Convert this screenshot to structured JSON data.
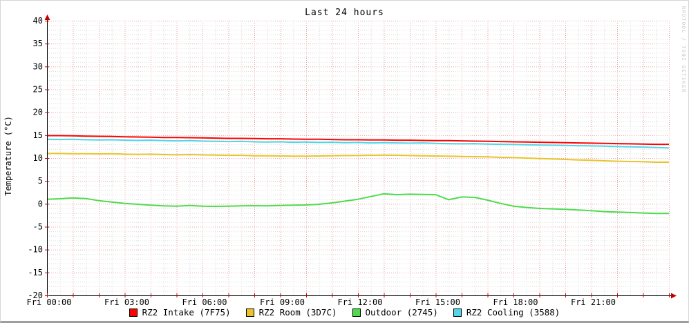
{
  "chart": {
    "title": "Last 24 hours",
    "watermark": "RRDTOOL / TOBI OETIKER"
  },
  "chart_data": {
    "type": "line",
    "title": "Last 24 hours",
    "xlabel": "",
    "ylabel": "Temperature (°C)",
    "x_axis_kind": "time, hours since Fri 00:00",
    "xlim": [
      0,
      24
    ],
    "ylim": [
      -20,
      40
    ],
    "y_major_step": 5,
    "y_minor_step": 1,
    "x_major_step_hours": 1,
    "x_minor_step_hours": 0.5,
    "x_ticks_hours": [
      0,
      3,
      6,
      9,
      12,
      15,
      18,
      21
    ],
    "x_tick_labels": [
      "Fri 00:00",
      "Fri 03:00",
      "Fri 06:00",
      "Fri 09:00",
      "Fri 12:00",
      "Fri 15:00",
      "Fri 18:00",
      "Fri 21:00"
    ],
    "y_tick_values": [
      -20,
      -15,
      -10,
      -5,
      0,
      5,
      10,
      15,
      20,
      25,
      30,
      35,
      40
    ],
    "grid_on": true,
    "legend_position": "bottom",
    "colors": {
      "major_grid": "#f2a0a0",
      "minor_grid": "#dcdcdc",
      "axis": "#000000",
      "arrow": "#c00000",
      "watermark": "#c6c6c6"
    },
    "sample_step_hours": 0.5,
    "series": [
      {
        "name": "RZ2 Intake (7F75)",
        "color": "#ff0000",
        "values": [
          14.9,
          14.9,
          14.85,
          14.8,
          14.75,
          14.7,
          14.65,
          14.6,
          14.55,
          14.5,
          14.5,
          14.45,
          14.4,
          14.35,
          14.3,
          14.3,
          14.25,
          14.2,
          14.2,
          14.15,
          14.1,
          14.1,
          14.05,
          14.0,
          14.0,
          13.95,
          13.95,
          13.9,
          13.9,
          13.85,
          13.8,
          13.8,
          13.75,
          13.7,
          13.65,
          13.6,
          13.55,
          13.5,
          13.45,
          13.4,
          13.35,
          13.3,
          13.25,
          13.2,
          13.15,
          13.1,
          13.05,
          13.0,
          13.0
        ]
      },
      {
        "name": "RZ2 Room (3D7C)",
        "color": "#e8c42a",
        "values": [
          11.0,
          11.0,
          10.95,
          10.95,
          10.9,
          10.95,
          10.85,
          10.8,
          10.85,
          10.75,
          10.7,
          10.75,
          10.7,
          10.65,
          10.6,
          10.6,
          10.5,
          10.5,
          10.45,
          10.4,
          10.4,
          10.45,
          10.5,
          10.55,
          10.55,
          10.6,
          10.65,
          10.6,
          10.55,
          10.5,
          10.45,
          10.4,
          10.35,
          10.3,
          10.25,
          10.15,
          10.1,
          10.0,
          9.9,
          9.8,
          9.7,
          9.6,
          9.5,
          9.4,
          9.3,
          9.25,
          9.2,
          9.1,
          9.1
        ]
      },
      {
        "name": "Outdoor (2745)",
        "color": "#4cdc4c",
        "values": [
          1.0,
          1.1,
          1.3,
          1.15,
          0.7,
          0.4,
          0.1,
          -0.1,
          -0.3,
          -0.45,
          -0.5,
          -0.35,
          -0.5,
          -0.55,
          -0.5,
          -0.45,
          -0.4,
          -0.45,
          -0.35,
          -0.3,
          -0.25,
          -0.1,
          0.2,
          0.6,
          1.0,
          1.6,
          2.2,
          2.0,
          2.1,
          2.05,
          2.0,
          0.9,
          1.5,
          1.4,
          0.8,
          0.1,
          -0.5,
          -0.8,
          -1.0,
          -1.1,
          -1.2,
          -1.35,
          -1.5,
          -1.7,
          -1.8,
          -1.9,
          -2.0,
          -2.1,
          -2.1
        ]
      },
      {
        "name": "RZ2 Cooling (3588)",
        "color": "#4fd6e8",
        "values": [
          14.1,
          14.05,
          14.1,
          14.0,
          13.95,
          14.0,
          13.9,
          13.85,
          13.9,
          13.8,
          13.75,
          13.8,
          13.7,
          13.65,
          13.6,
          13.65,
          13.55,
          13.5,
          13.55,
          13.45,
          13.5,
          13.4,
          13.45,
          13.35,
          13.4,
          13.3,
          13.35,
          13.3,
          13.25,
          13.3,
          13.2,
          13.15,
          13.1,
          13.15,
          13.05,
          13.0,
          12.95,
          12.9,
          12.85,
          12.8,
          12.75,
          12.7,
          12.65,
          12.6,
          12.5,
          12.45,
          12.4,
          12.3,
          12.2
        ]
      }
    ]
  }
}
